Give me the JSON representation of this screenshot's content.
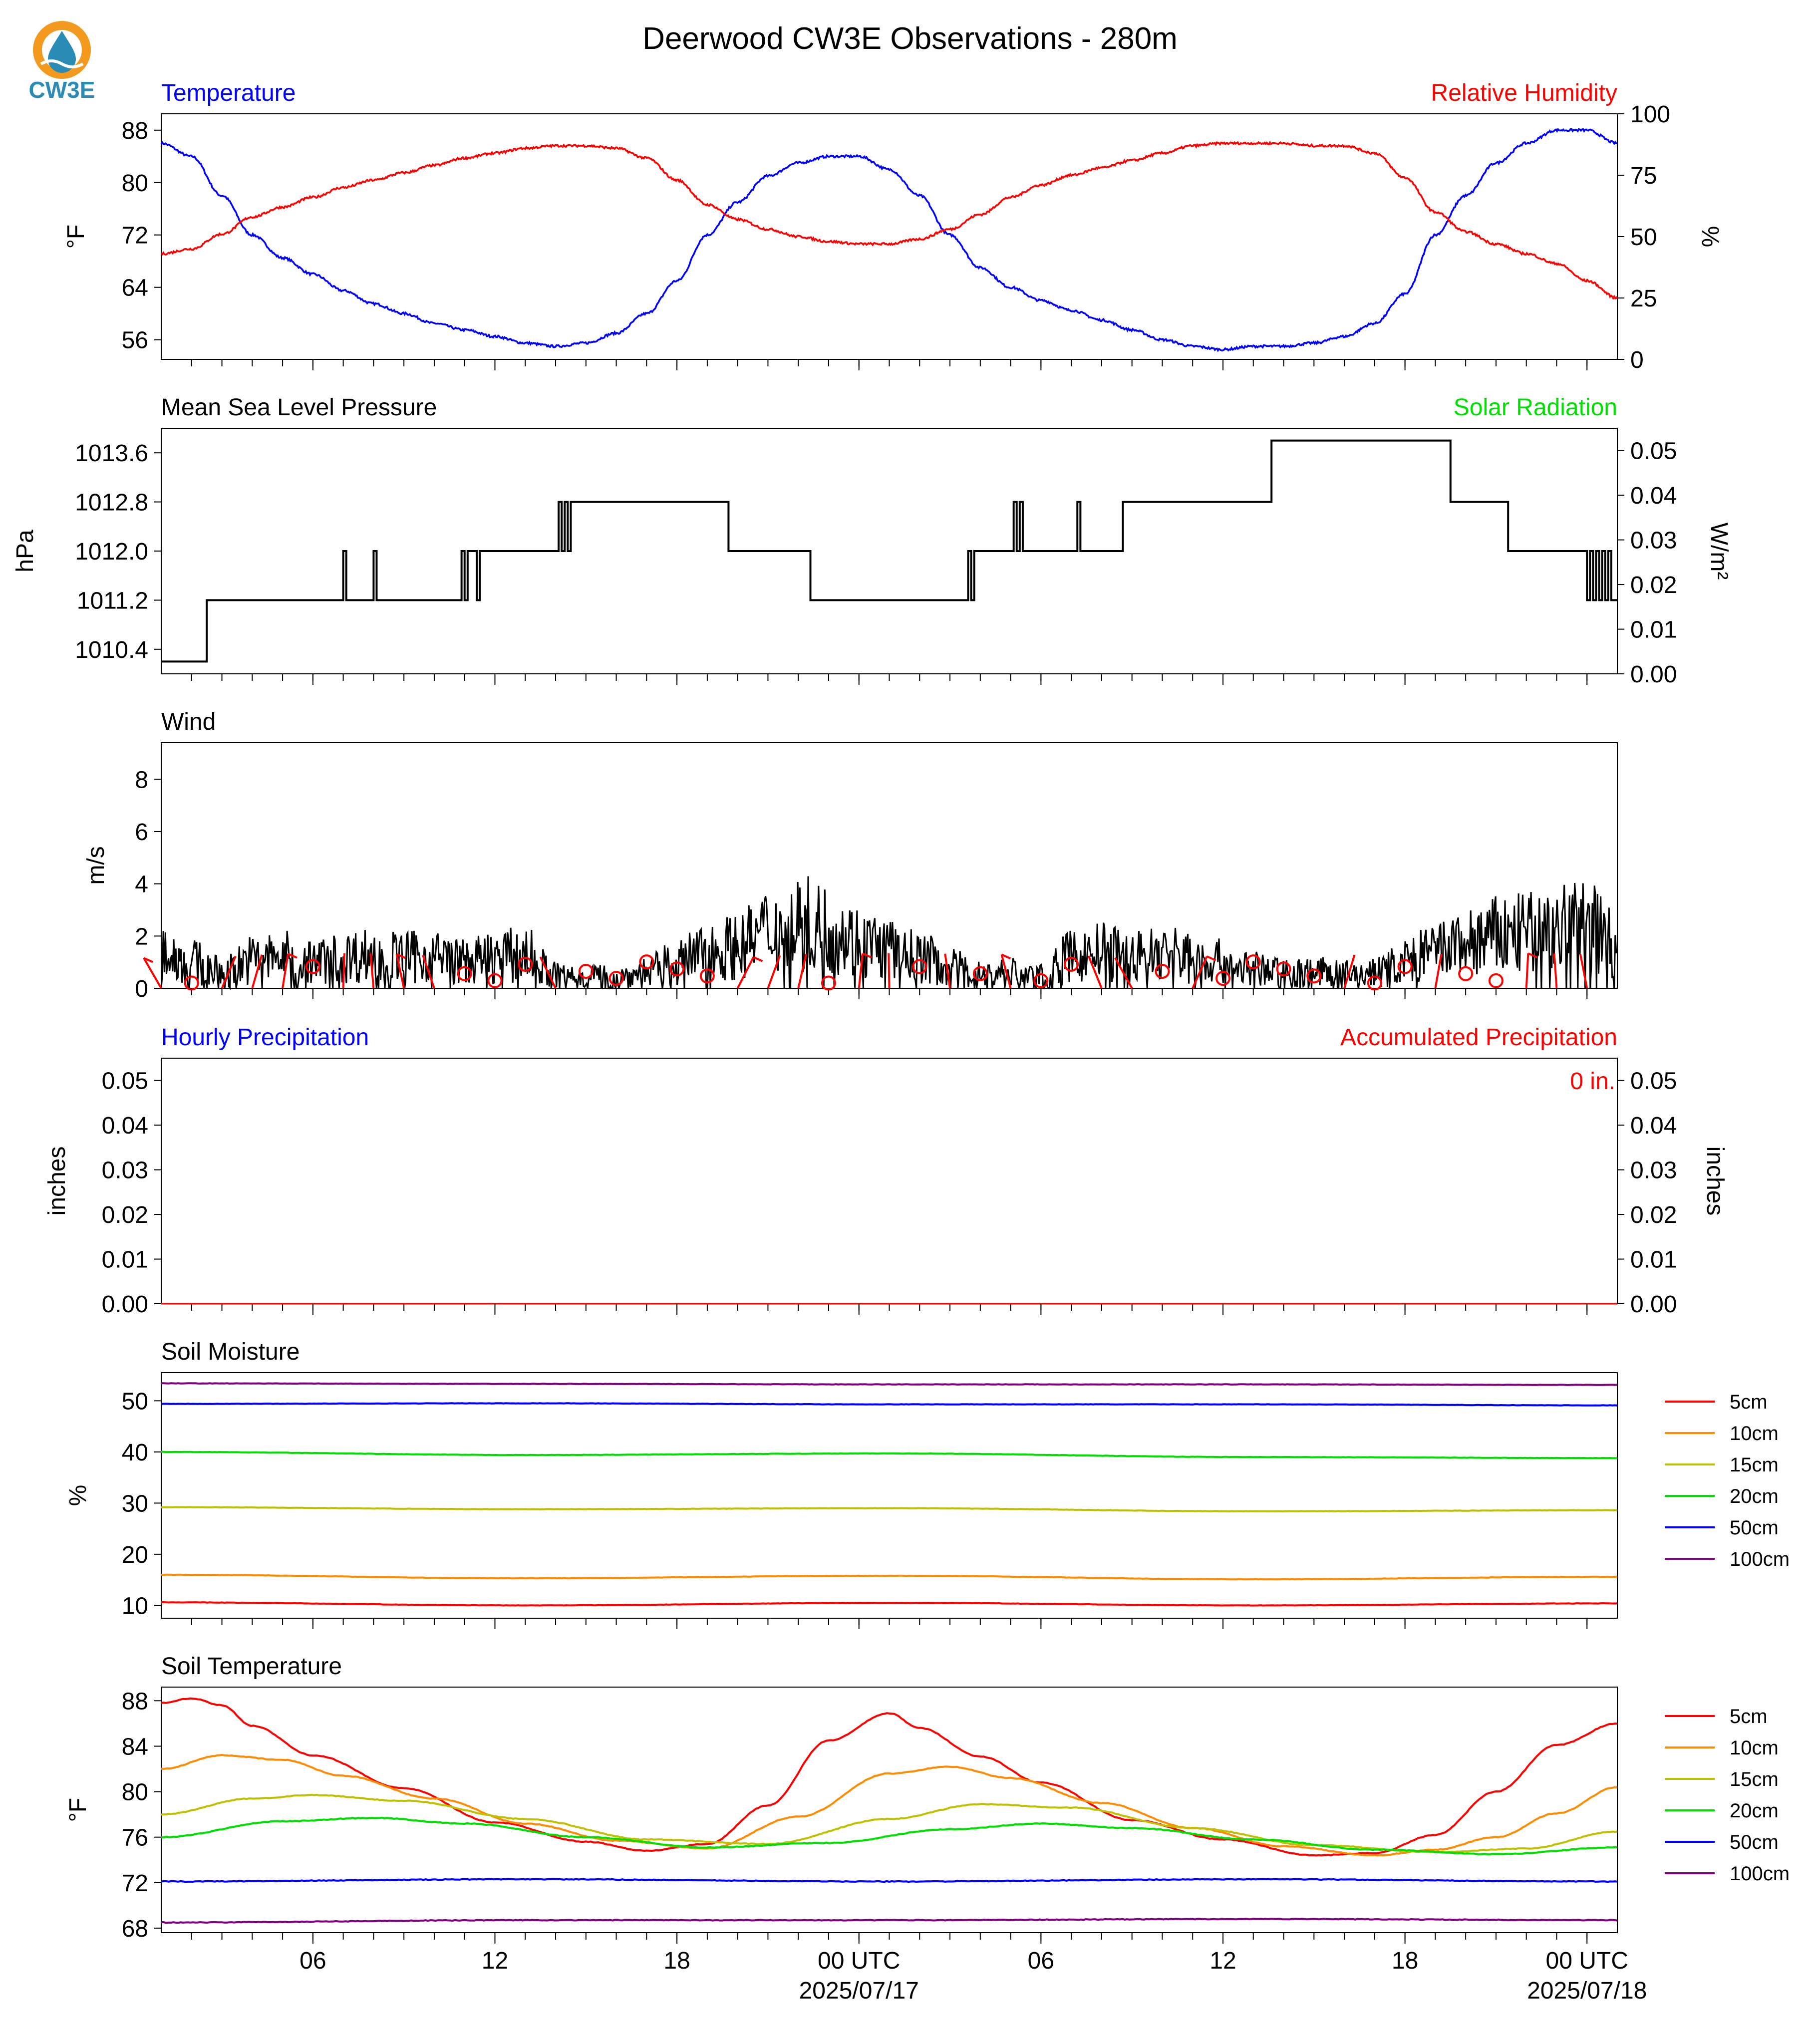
{
  "title": "Deerwood CW3E Observations - 280m",
  "logo": {
    "text": "CW3E",
    "colors": {
      "orange": "#f39a1e",
      "blue": "#2a8bb5"
    }
  },
  "colors": {
    "temperature": "#0000ff",
    "humidity": "#ff0000",
    "pressure": "#000000",
    "solar": "#00e000",
    "wind": "#000000",
    "barb": "#ff0000"
  },
  "time_axis": {
    "start_hour": 0,
    "end_hour": 48,
    "ticks": [
      {
        "hour": 5,
        "label": "06",
        "sub": ""
      },
      {
        "hour": 11,
        "label": "12",
        "sub": ""
      },
      {
        "hour": 17,
        "label": "18",
        "sub": ""
      },
      {
        "hour": 23,
        "label": "00 UTC",
        "sub": "2025/07/17"
      },
      {
        "hour": 29,
        "label": "06",
        "sub": ""
      },
      {
        "hour": 35,
        "label": "12",
        "sub": ""
      },
      {
        "hour": 41,
        "label": "18",
        "sub": ""
      },
      {
        "hour": 47,
        "label": "00 UTC",
        "sub": "2025/07/18"
      }
    ]
  },
  "chart_data": [
    {
      "type": "line",
      "panel": "temperature_humidity",
      "title_left": "Temperature",
      "title_right": "Relative Humidity",
      "ylabel_left": "°F",
      "ylabel_right": "%",
      "ylim_left": [
        53,
        90.5
      ],
      "yticks_left": [
        56,
        64,
        72,
        80,
        88
      ],
      "ylim_right": [
        0,
        100
      ],
      "yticks_right": [
        0,
        25,
        50,
        75,
        100
      ],
      "series": [
        {
          "name": "Temperature",
          "axis": "left",
          "x": [
            0,
            1,
            2,
            3,
            4,
            5,
            6,
            7,
            8,
            9,
            10,
            11,
            12,
            13,
            14,
            15,
            16,
            17,
            18,
            19,
            20,
            21,
            22,
            23,
            24,
            25,
            26,
            27,
            28,
            29,
            30,
            31,
            32,
            33,
            34,
            35,
            36,
            37,
            38,
            39,
            40,
            41,
            42,
            43,
            44,
            45,
            46,
            47,
            48
          ],
          "y": [
            86,
            84,
            78,
            72,
            68.5,
            66,
            63.5,
            61.5,
            60,
            58.5,
            57.5,
            56.5,
            55.5,
            55,
            55.5,
            57,
            60,
            65,
            72,
            77,
            81,
            83,
            84,
            84,
            82,
            78,
            72,
            67,
            64,
            62,
            60.5,
            59,
            57.5,
            56,
            55,
            54.5,
            55,
            55,
            55.5,
            56.5,
            58.5,
            63,
            72,
            78,
            83,
            86,
            88,
            88,
            86
          ]
        },
        {
          "name": "Relative Humidity",
          "axis": "right",
          "x": [
            0,
            1,
            2,
            3,
            4,
            5,
            6,
            7,
            8,
            9,
            10,
            11,
            12,
            13,
            14,
            15,
            16,
            17,
            18,
            19,
            20,
            21,
            22,
            23,
            24,
            25,
            26,
            27,
            28,
            29,
            30,
            31,
            32,
            33,
            34,
            35,
            36,
            37,
            38,
            39,
            40,
            41,
            42,
            43,
            44,
            45,
            46,
            47,
            48
          ],
          "y": [
            43,
            45,
            51,
            58,
            62,
            66,
            70,
            73,
            76,
            79,
            82,
            84,
            86,
            87,
            87,
            86,
            82,
            73,
            63,
            57,
            53,
            50,
            48,
            47,
            47,
            49,
            53,
            59,
            66,
            71,
            75,
            78,
            81,
            84,
            87,
            88,
            88,
            88,
            87,
            87,
            84,
            74,
            60,
            52,
            47,
            43,
            39,
            32,
            25
          ]
        }
      ]
    },
    {
      "type": "line",
      "panel": "pressure_solar",
      "title_left": "Mean Sea Level Pressure",
      "title_right": "Solar Radiation",
      "ylabel_left": "hPa",
      "ylabel_right": "W/m²",
      "ylim_left": [
        1010.0,
        1014.0
      ],
      "yticks_left": [
        1010.4,
        1011.2,
        1012.0,
        1012.8,
        1013.6
      ],
      "ylim_right": [
        0.0,
        0.055
      ],
      "yticks_right": [
        0.0,
        0.01,
        0.02,
        0.03,
        0.04,
        0.05
      ],
      "series": [
        {
          "name": "Mean Sea Level Pressure",
          "axis": "left",
          "steps": [
            [
              0,
              1010.2
            ],
            [
              1.5,
              1011.2
            ],
            [
              6.0,
              1012.0
            ],
            [
              6.1,
              1011.2
            ],
            [
              7.0,
              1012.0
            ],
            [
              7.1,
              1011.2
            ],
            [
              9.9,
              1012.0
            ],
            [
              10.0,
              1011.2
            ],
            [
              10.1,
              1012.0
            ],
            [
              10.4,
              1011.2
            ],
            [
              10.5,
              1012.0
            ],
            [
              13.1,
              1012.8
            ],
            [
              13.2,
              1012.0
            ],
            [
              13.3,
              1012.8
            ],
            [
              13.4,
              1012.0
            ],
            [
              13.5,
              1012.8
            ],
            [
              18.7,
              1012.0
            ],
            [
              21.4,
              1011.2
            ],
            [
              26.6,
              1012.0
            ],
            [
              26.7,
              1011.2
            ],
            [
              26.8,
              1012.0
            ],
            [
              28.1,
              1012.8
            ],
            [
              28.2,
              1012.0
            ],
            [
              28.3,
              1012.8
            ],
            [
              28.4,
              1012.0
            ],
            [
              30.2,
              1012.8
            ],
            [
              30.3,
              1012.0
            ],
            [
              31.7,
              1012.8
            ],
            [
              36.6,
              1013.8
            ],
            [
              42.5,
              1012.8
            ],
            [
              44.4,
              1012.0
            ],
            [
              47.0,
              1011.2
            ],
            [
              47.1,
              1012.0
            ],
            [
              47.2,
              1011.2
            ],
            [
              47.3,
              1012.0
            ],
            [
              47.4,
              1011.2
            ],
            [
              47.5,
              1012.0
            ],
            [
              47.6,
              1011.2
            ],
            [
              47.7,
              1012.0
            ],
            [
              47.8,
              1011.2
            ],
            [
              48,
              1011.2
            ]
          ]
        }
      ]
    },
    {
      "type": "line",
      "panel": "wind",
      "title_left": "Wind",
      "ylabel_left": "m/s",
      "ylim_left": [
        0,
        9.4
      ],
      "yticks_left": [
        0,
        2,
        4,
        6,
        8
      ],
      "series": [
        {
          "name": "Wind Speed",
          "axis": "left",
          "x": [
            0,
            1,
            2,
            3,
            4,
            5,
            6,
            7,
            8,
            9,
            10,
            11,
            12,
            13,
            14,
            15,
            16,
            17,
            18,
            19,
            20,
            21,
            22,
            23,
            24,
            25,
            26,
            27,
            28,
            29,
            30,
            31,
            32,
            33,
            34,
            35,
            36,
            37,
            38,
            39,
            40,
            41,
            42,
            43,
            44,
            45,
            46,
            47,
            48
          ],
          "y": [
            1.4,
            1.0,
            0.6,
            1.1,
            1.2,
            1.0,
            1.2,
            1.3,
            1.2,
            1.2,
            1.0,
            1.2,
            1.3,
            0.5,
            0.5,
            0.4,
            0.6,
            1.0,
            1.4,
            1.6,
            2.2,
            2.5,
            2.3,
            1.8,
            1.5,
            1.2,
            0.8,
            0.5,
            0.6,
            0.4,
            1.2,
            1.4,
            1.2,
            1.4,
            1.2,
            1.0,
            0.7,
            0.6,
            0.6,
            0.5,
            0.6,
            1.0,
            1.4,
            1.7,
            2.0,
            2.1,
            2.3,
            2.5,
            1.8
          ]
        },
        {
          "name": "Wind Barbs",
          "axis": "left",
          "calm_circles": [
            1,
            5,
            10,
            11,
            12,
            14,
            15,
            16,
            17,
            18,
            22,
            25,
            27,
            29,
            30,
            33,
            35,
            36,
            37,
            38,
            40,
            41,
            43,
            44
          ],
          "barbs": [
            0,
            2,
            3,
            4,
            6,
            7,
            8,
            9,
            13,
            19,
            20,
            21,
            23,
            24,
            26,
            28,
            31,
            32,
            34,
            39,
            42,
            45,
            46,
            47
          ]
        }
      ]
    },
    {
      "type": "line",
      "panel": "precipitation",
      "title_left": "Hourly Precipitation",
      "title_right": "Accumulated Precipitation",
      "ylabel_left": "inches",
      "ylabel_right": "inches",
      "annotation": "0 in.",
      "ylim_left": [
        0,
        0.055
      ],
      "yticks_left": [
        0.0,
        0.01,
        0.02,
        0.03,
        0.04,
        0.05
      ],
      "ylim_right": [
        0,
        0.055
      ],
      "yticks_right": [
        0.0,
        0.01,
        0.02,
        0.03,
        0.04,
        0.05
      ],
      "series": [
        {
          "name": "Hourly Precipitation",
          "axis": "left",
          "x": [
            0,
            48
          ],
          "y": [
            0,
            0
          ]
        },
        {
          "name": "Accumulated Precipitation",
          "axis": "right",
          "x": [
            0,
            48
          ],
          "y": [
            0,
            0
          ]
        }
      ]
    },
    {
      "type": "line",
      "panel": "soil_moisture",
      "title_left": "Soil Moisture",
      "ylabel_left": "%",
      "ylim_left": [
        7.5,
        55.5
      ],
      "yticks_left": [
        10,
        20,
        30,
        40,
        50
      ],
      "series": [
        {
          "name": "5cm",
          "color": "#ff0000",
          "x": [
            0,
            12,
            24,
            36,
            48
          ],
          "y": [
            10.6,
            10.0,
            10.5,
            10.0,
            10.4
          ]
        },
        {
          "name": "10cm",
          "color": "#ff8c00",
          "x": [
            0,
            12,
            24,
            36,
            48
          ],
          "y": [
            16.0,
            15.3,
            15.8,
            15.1,
            15.6
          ]
        },
        {
          "name": "15cm",
          "color": "#c0c000",
          "x": [
            0,
            12,
            24,
            36,
            48
          ],
          "y": [
            29.2,
            28.8,
            29.0,
            28.4,
            28.6
          ]
        },
        {
          "name": "20cm",
          "color": "#00e000",
          "x": [
            0,
            12,
            24,
            36,
            48
          ],
          "y": [
            40.0,
            39.4,
            39.7,
            39.0,
            38.8
          ]
        },
        {
          "name": "50cm",
          "color": "#0000ff",
          "x": [
            0,
            12,
            24,
            36,
            48
          ],
          "y": [
            49.4,
            49.5,
            49.3,
            49.3,
            49.1
          ]
        },
        {
          "name": "100cm",
          "color": "#800080",
          "x": [
            0,
            12,
            24,
            36,
            48
          ],
          "y": [
            53.4,
            53.3,
            53.2,
            53.2,
            53.1
          ]
        }
      ]
    },
    {
      "type": "line",
      "panel": "soil_temperature",
      "title_left": "Soil Temperature",
      "ylabel_left": "°F",
      "ylim_left": [
        67.6,
        89.2
      ],
      "yticks_left": [
        68,
        72,
        76,
        80,
        84,
        88
      ],
      "series": [
        {
          "name": "5cm",
          "color": "#ff0000",
          "x": [
            0,
            1,
            2,
            3,
            5,
            8,
            11,
            14,
            16,
            18,
            20,
            22,
            24,
            25,
            27,
            29,
            32,
            35,
            38,
            40,
            42,
            44,
            46,
            48
          ],
          "y": [
            87.8,
            88.2,
            87.6,
            85.8,
            83.2,
            80.3,
            77.3,
            75.6,
            74.8,
            75.4,
            78.8,
            84.5,
            86.9,
            85.6,
            83.1,
            80.8,
            77.5,
            75.8,
            74.4,
            74.6,
            76.2,
            80.0,
            84.1,
            86.0
          ]
        },
        {
          "name": "10cm",
          "color": "#ff8c00",
          "x": [
            0,
            2,
            4,
            6,
            9,
            12,
            15,
            18,
            21,
            24,
            26,
            28,
            31,
            34,
            37,
            40,
            42,
            44,
            46,
            48
          ],
          "y": [
            82.0,
            83.2,
            82.8,
            81.4,
            79.4,
            77.2,
            75.7,
            75.0,
            77.8,
            81.6,
            82.2,
            81.2,
            79.0,
            76.8,
            75.2,
            74.4,
            74.9,
            76.0,
            78.1,
            80.4
          ]
        },
        {
          "name": "15cm",
          "color": "#c0c000",
          "x": [
            0,
            3,
            5,
            8,
            12,
            16,
            20,
            24,
            27,
            30,
            34,
            38,
            42,
            45,
            48
          ],
          "y": [
            78.0,
            79.4,
            79.7,
            79.2,
            77.6,
            75.8,
            75.4,
            77.6,
            78.9,
            78.6,
            76.8,
            75.3,
            74.7,
            75.0,
            76.5
          ]
        },
        {
          "name": "20cm",
          "color": "#00e000",
          "x": [
            0,
            4,
            7,
            10,
            14,
            18,
            22,
            26,
            29,
            32,
            36,
            40,
            44,
            48
          ],
          "y": [
            76.0,
            77.4,
            77.7,
            77.2,
            76.0,
            75.1,
            75.5,
            76.7,
            77.2,
            76.8,
            75.8,
            74.9,
            74.5,
            75.1
          ]
        },
        {
          "name": "50cm",
          "color": "#0000ff",
          "x": [
            0,
            12,
            24,
            36,
            48
          ],
          "y": [
            72.1,
            72.3,
            72.1,
            72.3,
            72.1
          ]
        },
        {
          "name": "100cm",
          "color": "#800080",
          "x": [
            0,
            12,
            24,
            36,
            48
          ],
          "y": [
            68.5,
            68.7,
            68.7,
            68.8,
            68.7
          ]
        }
      ]
    }
  ]
}
